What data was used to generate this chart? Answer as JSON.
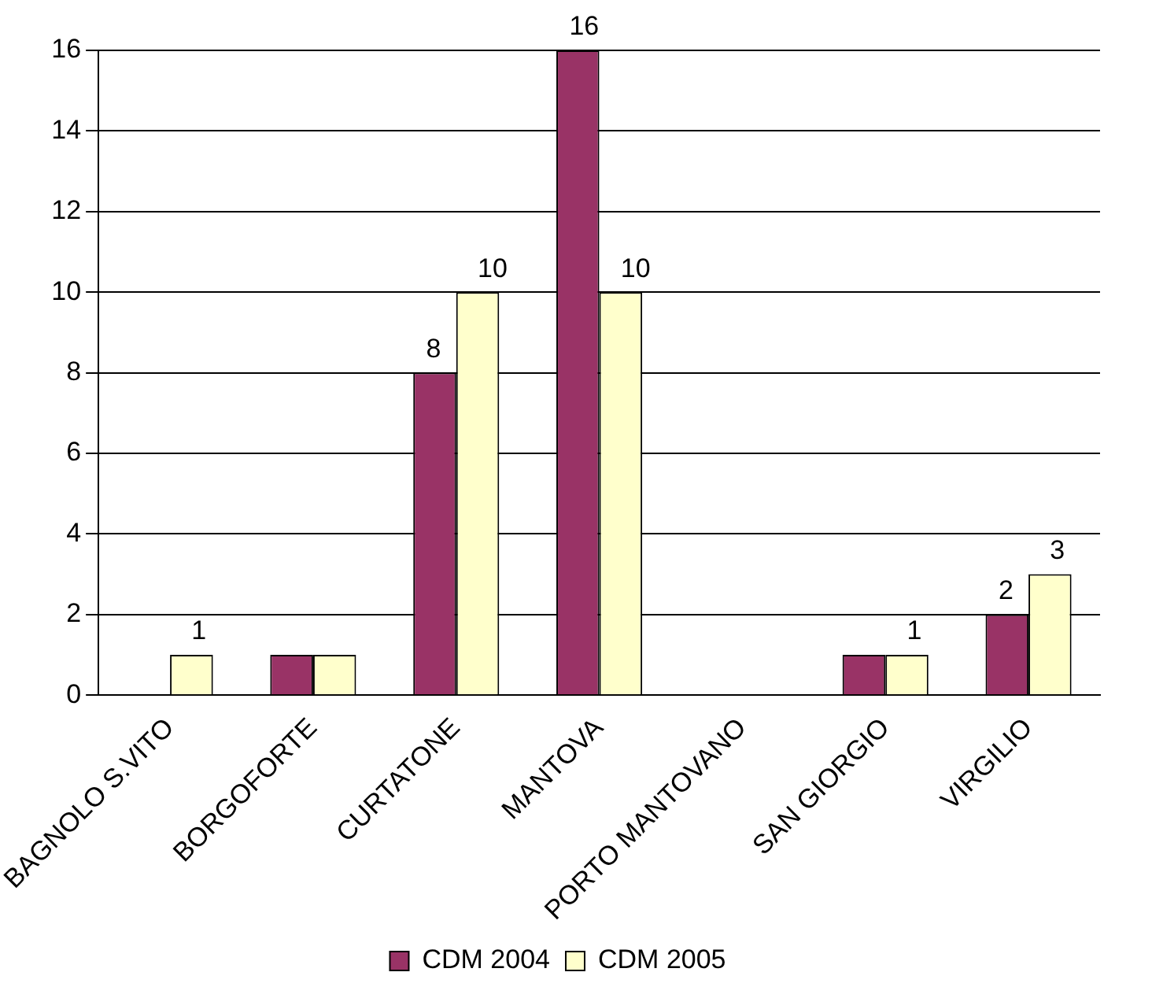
{
  "chart_data": {
    "type": "bar",
    "categories": [
      "BAGNOLO S.VITO",
      "BORGOFORTE",
      "CURTATONE",
      "MANTOVA",
      "PORTO MANTOVANO",
      "SAN GIORGIO",
      "VIRGILIO"
    ],
    "series": [
      {
        "name": "CDM 2004",
        "color": "#993366",
        "values": [
          0,
          1,
          8,
          16,
          0,
          1,
          2
        ],
        "value_labels": [
          null,
          null,
          "8",
          "16",
          null,
          null,
          "2"
        ]
      },
      {
        "name": "CDM 2005",
        "color": "#ffffcc",
        "values": [
          1,
          1,
          10,
          10,
          0,
          1,
          3
        ],
        "value_labels": [
          "1",
          null,
          "10",
          "10",
          null,
          "1",
          "3"
        ]
      }
    ],
    "ylim": [
      0,
      16
    ],
    "yticks": [
      0,
      2,
      4,
      6,
      8,
      10,
      12,
      14,
      16
    ],
    "grid": "y",
    "legend": "bottom"
  }
}
